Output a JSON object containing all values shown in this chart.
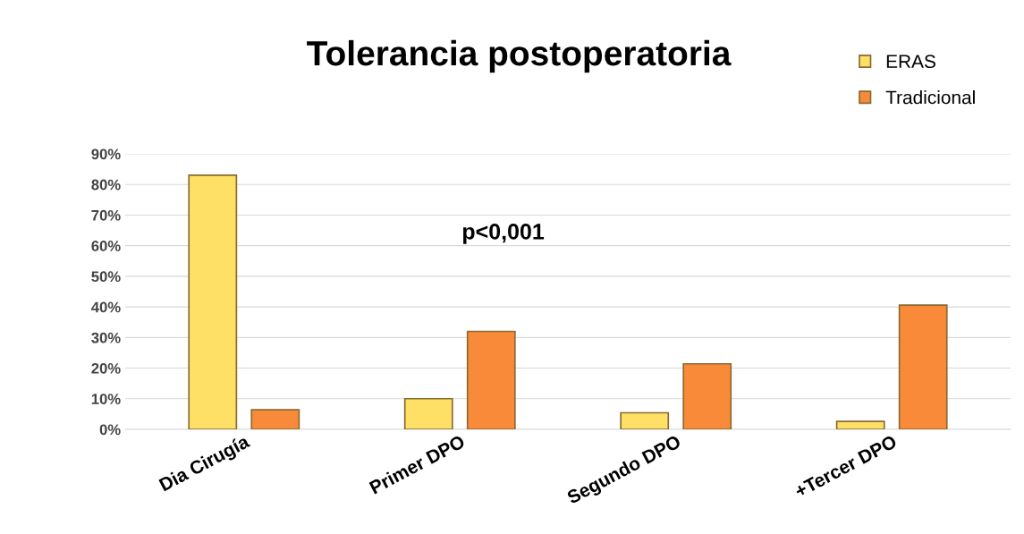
{
  "chart_data": {
    "type": "bar",
    "title": "Tolerancia postoperatoria",
    "categories": [
      "Dia Cirugía",
      "Primer DPO",
      "Segundo DPO",
      "+Tercer DPO"
    ],
    "series": [
      {
        "name": "ERAS",
        "color": "#ffe066",
        "values": [
          83,
          10,
          5.4,
          2.6
        ]
      },
      {
        "name": "Tradicional",
        "color": "#f98a3a",
        "values": [
          6.4,
          32,
          21.4,
          40.6
        ]
      }
    ],
    "ylim": [
      0,
      90
    ],
    "yticks": [
      {
        "value": 0,
        "label": "0%"
      },
      {
        "value": 10,
        "label": "10%"
      },
      {
        "value": 20,
        "label": "20%"
      },
      {
        "value": 30,
        "label": "30%"
      },
      {
        "value": 40,
        "label": "40%"
      },
      {
        "value": 50,
        "label": "50%"
      },
      {
        "value": 60,
        "label": "60%"
      },
      {
        "value": 70,
        "label": "70%"
      },
      {
        "value": 80,
        "label": "80%"
      },
      {
        "value": 90,
        "label": "90%"
      }
    ],
    "grid": "y",
    "legend": "top right",
    "annotations": [
      "p<0,001"
    ]
  }
}
